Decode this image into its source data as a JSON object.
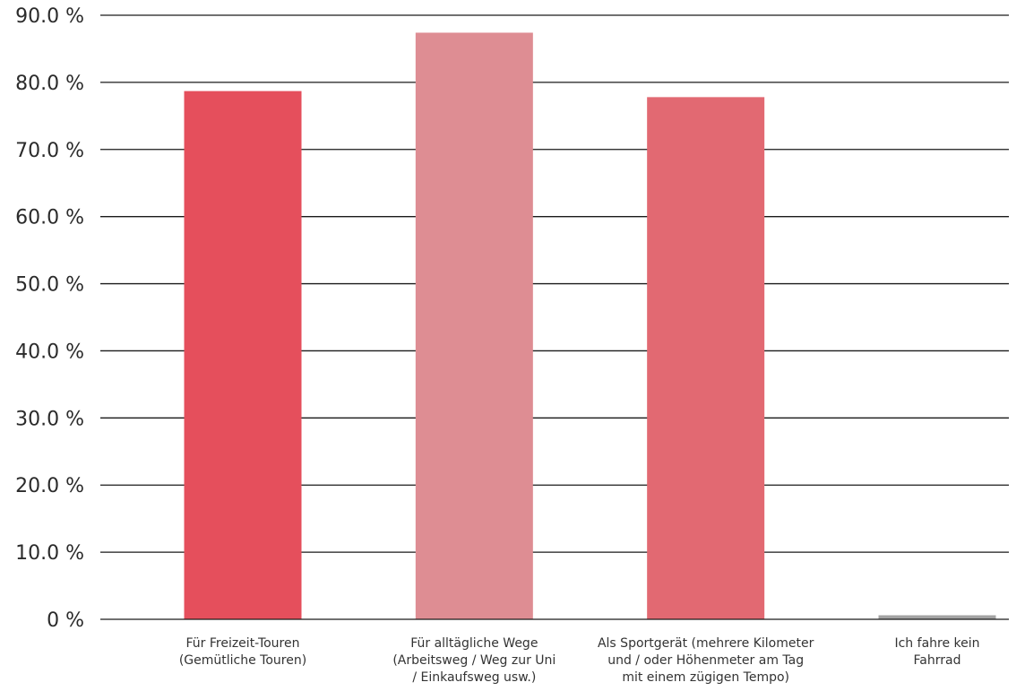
{
  "chart_data": {
    "type": "bar",
    "title": "",
    "xlabel": "",
    "ylabel": "",
    "ylim": [
      0,
      90
    ],
    "yticks": [
      {
        "value": 0,
        "label": "0 %"
      },
      {
        "value": 10,
        "label": "10.0 %"
      },
      {
        "value": 20,
        "label": "20.0 %"
      },
      {
        "value": 30,
        "label": "30.0 %"
      },
      {
        "value": 40,
        "label": "40.0 %"
      },
      {
        "value": 50,
        "label": "50.0 %"
      },
      {
        "value": 60,
        "label": "60.0 %"
      },
      {
        "value": 70,
        "label": "70.0 %"
      },
      {
        "value": 80,
        "label": "80.0 %"
      },
      {
        "value": 90,
        "label": "90.0 %"
      }
    ],
    "grid": true,
    "categories": [
      [
        "Für Freizeit-Touren",
        "(Gemütliche Touren)"
      ],
      [
        "Für alltägliche Wege",
        "(Arbeitsweg / Weg zur Uni",
        "/ Einkaufsweg usw.)"
      ],
      [
        "Als Sportgerät (mehrere Kilometer",
        "und / oder Höhenmeter am Tag",
        "mit einem zügigen Tempo)"
      ],
      [
        "Ich fahre kein",
        "Fahrrad"
      ]
    ],
    "values": [
      78.7,
      87.4,
      77.8,
      0.6
    ],
    "colors": [
      "#e54f5c",
      "#de8d93",
      "#e26972",
      "#a3a3a3"
    ]
  }
}
